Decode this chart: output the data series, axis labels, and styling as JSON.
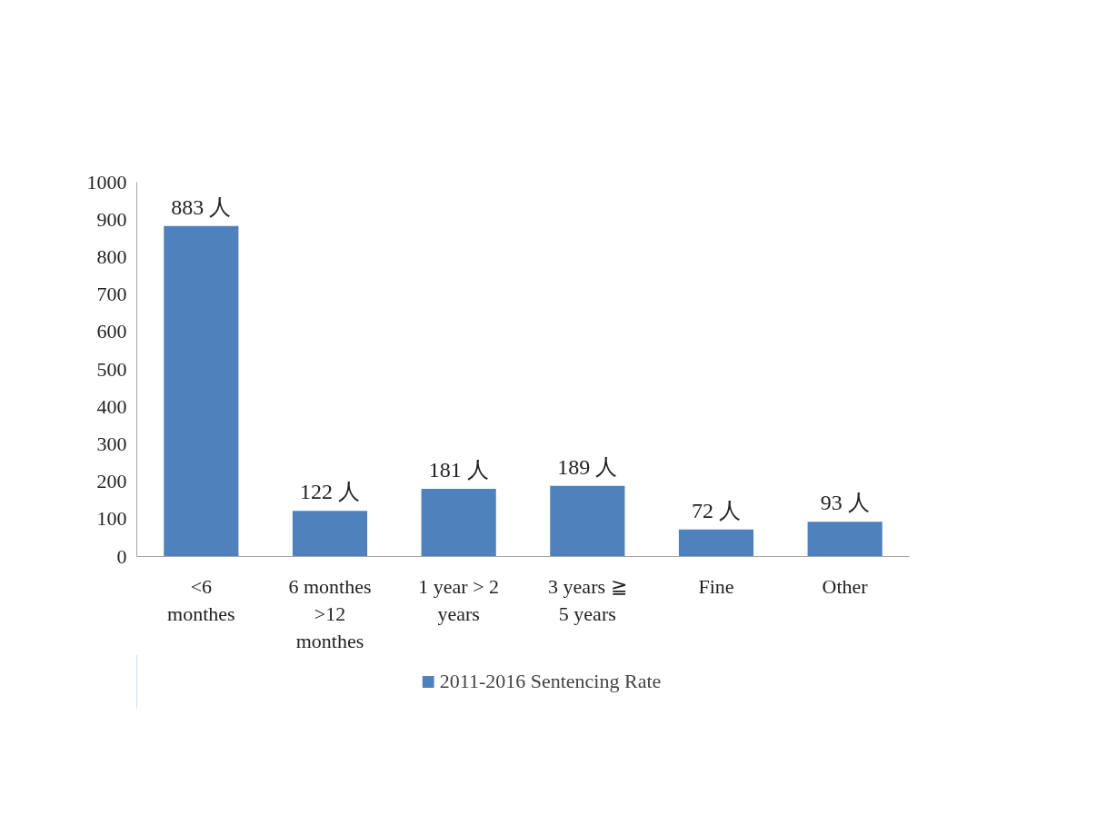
{
  "chart_data": {
    "type": "bar",
    "categories": [
      "<6\nmonthes",
      "6 monthes\n>12\nmonthes",
      "1 year > 2\nyears",
      "3 years ≧\n5 years",
      "Fine",
      "Other"
    ],
    "series": [
      {
        "name": "2011-2016 Sentencing Rate",
        "color": "#4f81bd",
        "values": [
          883,
          122,
          181,
          189,
          72,
          93
        ],
        "value_labels": [
          "883 人",
          "122 人",
          "181 人",
          "189 人",
          "72 人",
          "93 人"
        ]
      }
    ],
    "ylim": [
      0,
      1000
    ],
    "yticks": [
      0,
      100,
      200,
      300,
      400,
      500,
      600,
      700,
      800,
      900,
      1000
    ],
    "grid": false,
    "legend": "bottom"
  }
}
